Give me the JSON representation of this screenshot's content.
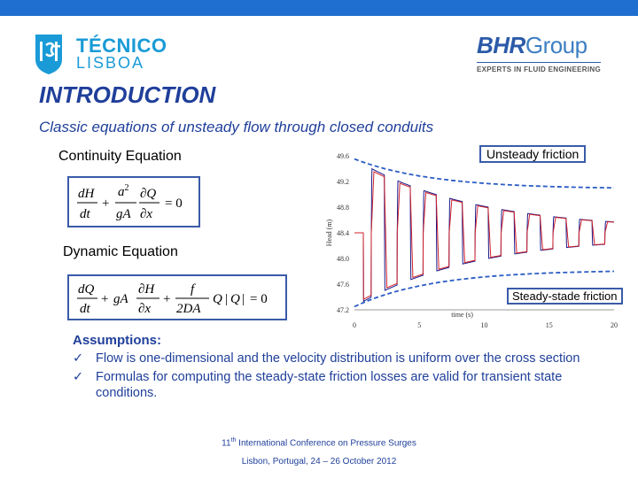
{
  "header": {
    "ist_logo": {
      "line1": "TÉCNICO",
      "line2": "LISBOA"
    },
    "bhr_logo": {
      "name": "BHR",
      "name2": "Group",
      "tagline": "EXPERTS IN FLUID ENGINEERING"
    }
  },
  "slide": {
    "title": "INTRODUCTION",
    "subtitle": "Classic equations of unsteady flow through closed conduits",
    "continuity_label": "Continuity Equation",
    "dynamic_label": "Dynamic Equation"
  },
  "chart_data": {
    "type": "line",
    "ylabel": "Head (m)",
    "xlabel": "time (s)",
    "xlim": [
      0,
      20
    ],
    "ylim": [
      47.2,
      49.6
    ],
    "xticks": [
      "0",
      "5",
      "10",
      "15",
      "20"
    ],
    "yticks": [
      "49.6",
      "49.2",
      "48.8",
      "48.4",
      "48.0",
      "47.6",
      "47.2"
    ],
    "series": [
      {
        "color": "#1a1a8a",
        "values": []
      },
      {
        "color": "#d0202a",
        "values": []
      }
    ],
    "envelopes": {
      "upper_start": 49.55,
      "upper_end": 49.1,
      "lower_start": 47.25,
      "lower_end": 47.8,
      "color": "#2a5cc4"
    },
    "callouts": [
      "Unsteady friction",
      "Steady-stade friction"
    ]
  },
  "assumptions": {
    "heading": "Assumptions:",
    "items": [
      "Flow is one-dimensional and the velocity distribution is uniform over the cross section",
      "Formulas for computing the steady-state friction losses are valid for transient state conditions."
    ]
  },
  "footer": {
    "line1_pre": "11",
    "line1_sup": "th",
    "line1_post": " International Conference on Pressure Surges",
    "line2": "Lisbon, Portugal, 24 – 26 October 2012"
  },
  "colors": {
    "accent": "#1f3f9a",
    "topbar": "#1f6fd0",
    "box": "#3a5ba8"
  }
}
